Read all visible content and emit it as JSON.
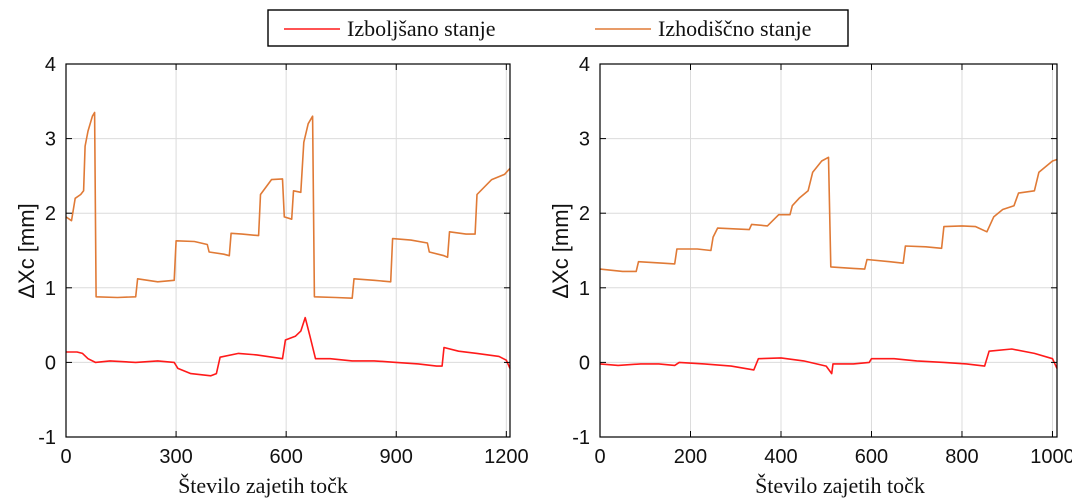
{
  "legend": {
    "items": [
      {
        "label": "Izboljšano stanje",
        "color": "#ff1a1a"
      },
      {
        "label": "Izhodiščno stanje",
        "color": "#e07a36"
      }
    ],
    "placement": "top-center"
  },
  "chart_data": [
    {
      "type": "line",
      "xlabel": "Število zajetih točk",
      "ylabel": "ΔXc [mm]",
      "xlim": [
        0,
        1210
      ],
      "ylim": [
        -1,
        4
      ],
      "xticks": [
        0,
        300,
        600,
        900,
        1200
      ],
      "xtick_labels": [
        "0",
        "300",
        "600",
        "900",
        "1200"
      ],
      "yticks": [
        -1,
        0,
        1,
        2,
        3,
        4
      ],
      "ytick_labels": [
        "-1",
        "0",
        "1",
        "2",
        "3",
        "4"
      ],
      "grid": true,
      "series": [
        {
          "name": "Izhodiščno stanje",
          "color": "#e07a36",
          "points": [
            [
              0,
              1.95
            ],
            [
              15,
              1.9
            ],
            [
              25,
              2.2
            ],
            [
              40,
              2.25
            ],
            [
              48,
              2.3
            ],
            [
              52,
              2.9
            ],
            [
              60,
              3.1
            ],
            [
              72,
              3.3
            ],
            [
              78,
              3.35
            ],
            [
              82,
              0.88
            ],
            [
              140,
              0.87
            ],
            [
              190,
              0.88
            ],
            [
              195,
              1.12
            ],
            [
              250,
              1.08
            ],
            [
              295,
              1.1
            ],
            [
              300,
              1.63
            ],
            [
              350,
              1.62
            ],
            [
              385,
              1.58
            ],
            [
              390,
              1.48
            ],
            [
              430,
              1.45
            ],
            [
              445,
              1.43
            ],
            [
              450,
              1.73
            ],
            [
              480,
              1.72
            ],
            [
              525,
              1.7
            ],
            [
              530,
              2.25
            ],
            [
              560,
              2.45
            ],
            [
              590,
              2.46
            ],
            [
              595,
              1.95
            ],
            [
              615,
              1.92
            ],
            [
              620,
              2.3
            ],
            [
              640,
              2.28
            ],
            [
              648,
              2.95
            ],
            [
              660,
              3.2
            ],
            [
              672,
              3.3
            ],
            [
              677,
              0.88
            ],
            [
              735,
              0.87
            ],
            [
              780,
              0.86
            ],
            [
              785,
              1.12
            ],
            [
              840,
              1.1
            ],
            [
              885,
              1.08
            ],
            [
              890,
              1.66
            ],
            [
              940,
              1.64
            ],
            [
              985,
              1.6
            ],
            [
              990,
              1.48
            ],
            [
              1030,
              1.43
            ],
            [
              1040,
              1.41
            ],
            [
              1045,
              1.75
            ],
            [
              1090,
              1.72
            ],
            [
              1115,
              1.72
            ],
            [
              1120,
              2.25
            ],
            [
              1160,
              2.45
            ],
            [
              1195,
              2.52
            ],
            [
              1210,
              2.6
            ]
          ]
        },
        {
          "name": "Izboljšano stanje",
          "color": "#ff1a1a",
          "points": [
            [
              0,
              0.14
            ],
            [
              30,
              0.14
            ],
            [
              45,
              0.12
            ],
            [
              60,
              0.05
            ],
            [
              80,
              0.0
            ],
            [
              120,
              0.02
            ],
            [
              190,
              0.0
            ],
            [
              250,
              0.02
            ],
            [
              295,
              0.0
            ],
            [
              305,
              -0.08
            ],
            [
              340,
              -0.15
            ],
            [
              395,
              -0.18
            ],
            [
              410,
              -0.15
            ],
            [
              420,
              0.07
            ],
            [
              470,
              0.12
            ],
            [
              520,
              0.1
            ],
            [
              590,
              0.05
            ],
            [
              598,
              0.3
            ],
            [
              625,
              0.35
            ],
            [
              640,
              0.42
            ],
            [
              652,
              0.6
            ],
            [
              665,
              0.35
            ],
            [
              680,
              0.05
            ],
            [
              720,
              0.05
            ],
            [
              780,
              0.02
            ],
            [
              840,
              0.02
            ],
            [
              900,
              0.0
            ],
            [
              960,
              -0.02
            ],
            [
              1010,
              -0.05
            ],
            [
              1025,
              -0.05
            ],
            [
              1030,
              0.2
            ],
            [
              1070,
              0.15
            ],
            [
              1120,
              0.12
            ],
            [
              1180,
              0.08
            ],
            [
              1200,
              0.03
            ],
            [
              1210,
              -0.08
            ]
          ]
        }
      ]
    },
    {
      "type": "line",
      "xlabel": "Število zajetih točk",
      "ylabel": "ΔXc [mm]",
      "xlim": [
        0,
        1010
      ],
      "ylim": [
        -1,
        4
      ],
      "xticks": [
        0,
        200,
        400,
        600,
        800,
        1000
      ],
      "xtick_labels": [
        "0",
        "200",
        "400",
        "600",
        "800",
        "1000"
      ],
      "yticks": [
        -1,
        0,
        1,
        2,
        3,
        4
      ],
      "ytick_labels": [
        "-1",
        "0",
        "1",
        "2",
        "3",
        "4"
      ],
      "grid": true,
      "series": [
        {
          "name": "Izhodiščno stanje",
          "color": "#e07a36",
          "points": [
            [
              0,
              1.25
            ],
            [
              50,
              1.22
            ],
            [
              80,
              1.22
            ],
            [
              85,
              1.35
            ],
            [
              140,
              1.33
            ],
            [
              165,
              1.32
            ],
            [
              170,
              1.52
            ],
            [
              215,
              1.52
            ],
            [
              245,
              1.5
            ],
            [
              250,
              1.68
            ],
            [
              260,
              1.8
            ],
            [
              300,
              1.79
            ],
            [
              330,
              1.78
            ],
            [
              335,
              1.85
            ],
            [
              370,
              1.83
            ],
            [
              395,
              1.98
            ],
            [
              420,
              1.98
            ],
            [
              425,
              2.1
            ],
            [
              440,
              2.2
            ],
            [
              460,
              2.3
            ],
            [
              470,
              2.55
            ],
            [
              490,
              2.7
            ],
            [
              505,
              2.75
            ],
            [
              510,
              1.28
            ],
            [
              560,
              1.26
            ],
            [
              585,
              1.25
            ],
            [
              590,
              1.38
            ],
            [
              640,
              1.35
            ],
            [
              670,
              1.33
            ],
            [
              675,
              1.56
            ],
            [
              720,
              1.55
            ],
            [
              755,
              1.53
            ],
            [
              760,
              1.82
            ],
            [
              800,
              1.83
            ],
            [
              830,
              1.82
            ],
            [
              855,
              1.75
            ],
            [
              870,
              1.95
            ],
            [
              890,
              2.05
            ],
            [
              915,
              2.1
            ],
            [
              925,
              2.27
            ],
            [
              960,
              2.3
            ],
            [
              970,
              2.55
            ],
            [
              1000,
              2.7
            ],
            [
              1010,
              2.72
            ]
          ]
        },
        {
          "name": "Izboljšano stanje",
          "color": "#ff1a1a",
          "points": [
            [
              0,
              -0.02
            ],
            [
              40,
              -0.04
            ],
            [
              90,
              -0.02
            ],
            [
              130,
              -0.02
            ],
            [
              165,
              -0.04
            ],
            [
              175,
              0.0
            ],
            [
              230,
              -0.02
            ],
            [
              290,
              -0.05
            ],
            [
              340,
              -0.1
            ],
            [
              350,
              0.05
            ],
            [
              400,
              0.06
            ],
            [
              450,
              0.02
            ],
            [
              500,
              -0.05
            ],
            [
              512,
              -0.15
            ],
            [
              515,
              -0.02
            ],
            [
              560,
              -0.02
            ],
            [
              595,
              0.0
            ],
            [
              600,
              0.05
            ],
            [
              650,
              0.05
            ],
            [
              700,
              0.02
            ],
            [
              760,
              0.0
            ],
            [
              810,
              -0.02
            ],
            [
              850,
              -0.05
            ],
            [
              860,
              0.15
            ],
            [
              910,
              0.18
            ],
            [
              960,
              0.12
            ],
            [
              1000,
              0.05
            ],
            [
              1010,
              -0.08
            ]
          ]
        }
      ]
    }
  ]
}
